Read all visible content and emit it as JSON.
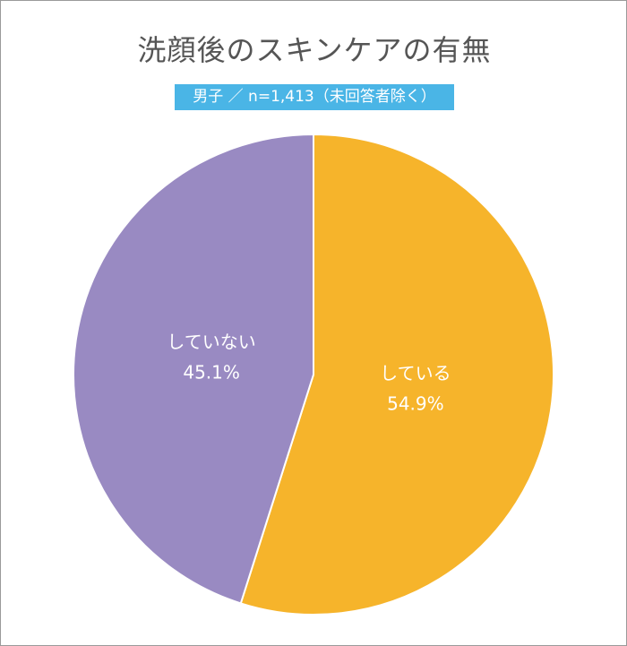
{
  "chart_data": {
    "type": "pie",
    "title": "洗顔後のスキンケアの有無",
    "subtitle": "男子 ／ n=1,413（未回答者除く）",
    "slices": [
      {
        "label": "している",
        "value": 54.9,
        "value_label": "54.9%",
        "color": "#f6b42b"
      },
      {
        "label": "していない",
        "value": 45.1,
        "value_label": "45.1%",
        "color": "#998ac2"
      }
    ],
    "start_angle": "12 o'clock",
    "direction": "clockwise"
  }
}
